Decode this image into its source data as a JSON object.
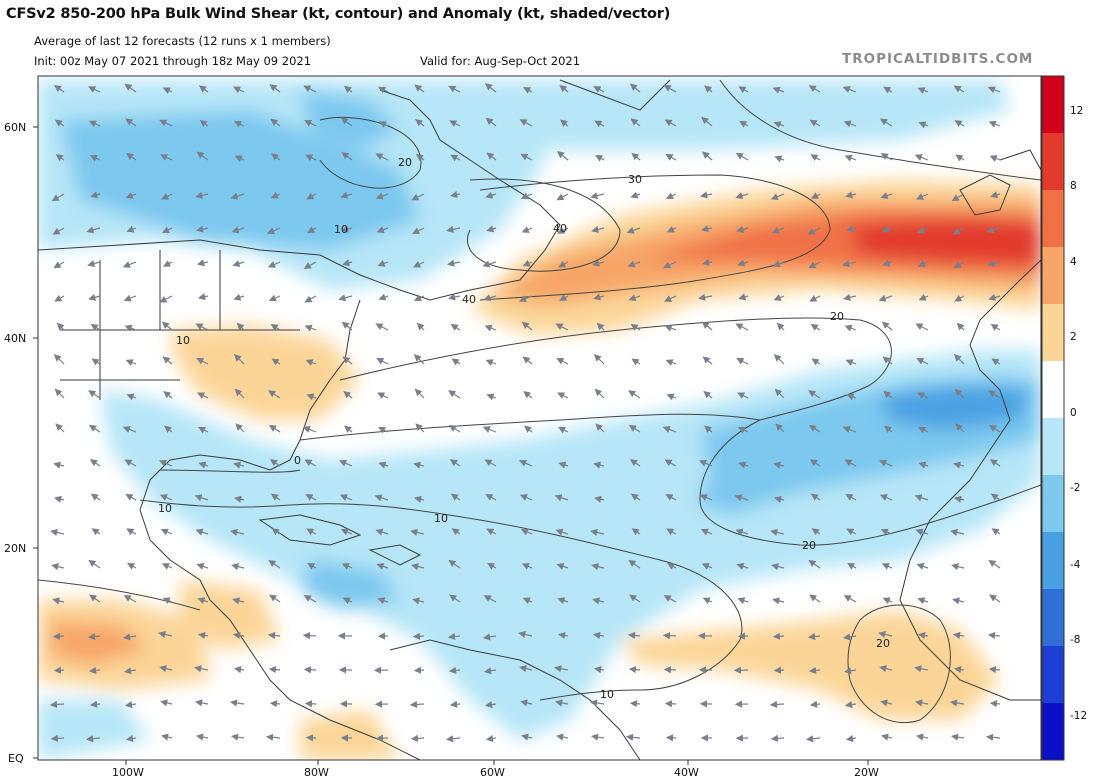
{
  "header": {
    "title": "CFSv2 850-200 hPa Bulk Wind Shear (kt, contour) and Anomaly (kt, shaded/vector)",
    "subtitle": "Average of last 12 forecasts (12 runs x 1 members)",
    "init": "Init: 00z May 07 2021 through 18z May 09 2021",
    "valid": "Valid for: Aug-Sep-Oct 2021",
    "brand": "TROPICALTIDBITS.COM"
  },
  "map": {
    "lat_labels": [
      "60N",
      "40N",
      "20N",
      "EQ"
    ],
    "lon_labels": [
      "100W",
      "80W",
      "60W",
      "40W",
      "20W"
    ],
    "contour_labels": [
      "20",
      "30",
      "10",
      "40",
      "40",
      "20",
      "10",
      "10",
      "0",
      "10",
      "20",
      "20",
      "10"
    ]
  },
  "colorbar": {
    "labels": [
      "12",
      "8",
      "4",
      "2",
      "0",
      "-2",
      "-4",
      "-8",
      "-12"
    ],
    "colors": [
      "#d2001a",
      "#e23b2d",
      "#f07146",
      "#f7a667",
      "#fbd598",
      "#ffffff",
      "#b6e6f7",
      "#7cc8ef",
      "#4aa0e2",
      "#2f6fd6",
      "#1d3fd3",
      "#0a10c8"
    ]
  }
}
